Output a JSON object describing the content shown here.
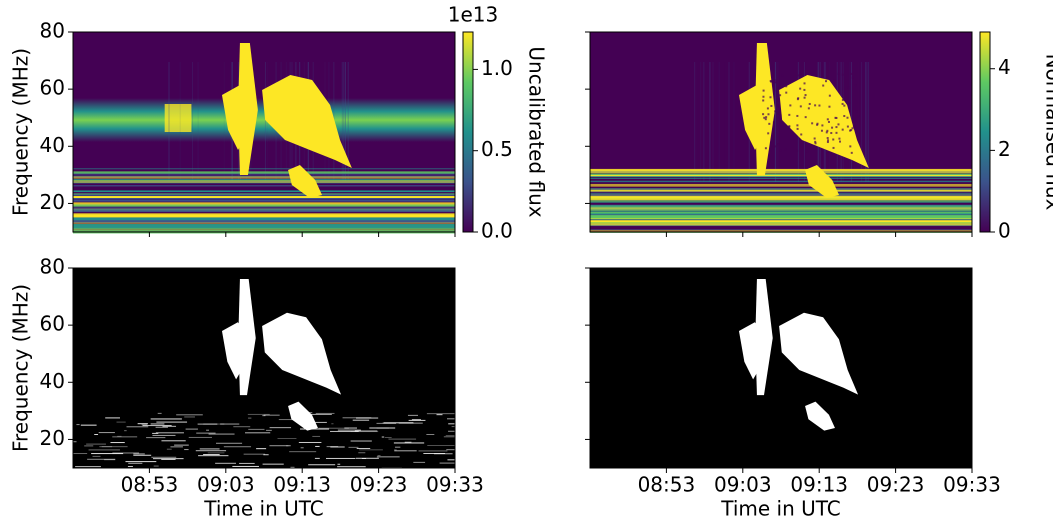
{
  "chart_data": [
    {
      "type": "heatmap",
      "colormap": "viridis",
      "ylabel": "Frequency (MHz)",
      "ylim": [
        10,
        80
      ],
      "yticks": [
        20,
        40,
        60,
        80
      ],
      "ytick_labels": true,
      "xlim": [
        "08:43",
        "09:33"
      ],
      "xticks": [
        "08:53",
        "09:03",
        "09:13",
        "09:23",
        "09:33"
      ],
      "xtick_labels": false,
      "colorbar": {
        "label": "Uncalibrated flux",
        "offset_label": "1e13",
        "ylim": [
          0,
          12300000000000
        ],
        "yticks": [
          {
            "value": 0,
            "label": "0.0"
          },
          {
            "value": 5000000000000,
            "label": "0.5"
          },
          {
            "value": 10000000000000,
            "label": "1.0"
          }
        ]
      }
    },
    {
      "type": "heatmap",
      "colormap": "viridis",
      "ylim": [
        10,
        80
      ],
      "yticks": [
        20,
        40,
        60,
        80
      ],
      "ytick_labels": false,
      "xlim": [
        "08:43",
        "09:33"
      ],
      "xticks": [
        "08:53",
        "09:03",
        "09:13",
        "09:23",
        "09:33"
      ],
      "xtick_labels": false,
      "colorbar": {
        "label": "Normalised flux",
        "ylim": [
          0,
          4.9
        ],
        "yticks": [
          0,
          2,
          4
        ]
      }
    },
    {
      "type": "heatmap",
      "colormap": "gray",
      "ylabel": "Frequency (MHz)",
      "xlabel": "Time in UTC",
      "ylim": [
        10,
        80
      ],
      "yticks": [
        20,
        40,
        60,
        80
      ],
      "ytick_labels": true,
      "xlim": [
        "08:43",
        "09:33"
      ],
      "xticks": [
        "08:53",
        "09:03",
        "09:13",
        "09:23",
        "09:33"
      ],
      "xtick_labels": true,
      "noise": true
    },
    {
      "type": "heatmap",
      "colormap": "gray",
      "xlabel": "Time in UTC",
      "ylim": [
        10,
        80
      ],
      "yticks": [
        20,
        40,
        60,
        80
      ],
      "ytick_labels": false,
      "xlim": [
        "08:43",
        "09:33"
      ],
      "xticks": [
        "08:53",
        "09:03",
        "09:13",
        "09:23",
        "09:33"
      ],
      "xtick_labels": true,
      "noise": false
    }
  ]
}
